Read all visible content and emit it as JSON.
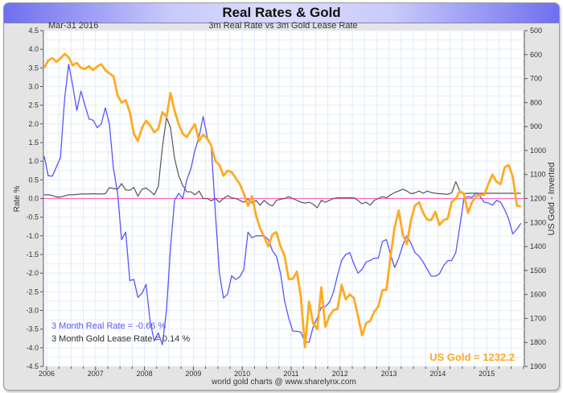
{
  "title": "Real Rates & Gold",
  "date_label": "Mar-31  2016",
  "subtitle": "3m Real Rate vs 3m Gold Lease Rate",
  "footer": "world gold charts @ www.sharelynx.com",
  "chart_data": {
    "type": "line",
    "title": "Real Rates & Gold",
    "subtitle": "3m Real Rate vs 3m Gold Lease Rate",
    "xlabel": "",
    "ylabel": "Rate %",
    "y2label": "US Gold - Inverted",
    "xlim": [
      2005.9,
      2015.75
    ],
    "ylim": [
      -4.5,
      4.5
    ],
    "y2lim": [
      500,
      1900
    ],
    "y2_inverted": true,
    "x_ticks": [
      "2006",
      "2007",
      "2008",
      "2009",
      "2010",
      "2011",
      "2012",
      "2013",
      "2014",
      "2015"
    ],
    "y_ticks": [
      "4.5",
      "4.0",
      "3.5",
      "3.0",
      "2.5",
      "2.0",
      "1.5",
      "1.0",
      "0.5",
      "0.0",
      "-0.5",
      "-1.0",
      "-1.5",
      "-2.0",
      "-2.5",
      "-3.0",
      "-3.5",
      "-4.0",
      "-4.5"
    ],
    "y2_ticks": [
      "500",
      "600",
      "700",
      "800",
      "900",
      "1000",
      "1100",
      "1200",
      "1300",
      "1400",
      "1500",
      "1600",
      "1700",
      "1800",
      "1900"
    ],
    "x_start": 2005.95,
    "x_step_years": 0.08333,
    "grid": true,
    "zero_line_color": "#ff66cc",
    "series": [
      {
        "name": "3 Month Real Rate",
        "axis": "left",
        "color": "#5555ff",
        "label": "3 Month Real Rate = -0.66 %",
        "values": [
          1.13,
          0.61,
          0.6,
          0.85,
          1.1,
          2.66,
          3.6,
          3.03,
          2.36,
          2.88,
          2.5,
          2.13,
          2.1,
          1.9,
          2.0,
          2.43,
          2.0,
          0.8,
          0.14,
          -1.1,
          -0.9,
          -2.2,
          -2.17,
          -2.65,
          -2.54,
          -2.3,
          -3.3,
          -3.82,
          -3.6,
          -3.92,
          -3.0,
          -1.31,
          -0.04,
          0.14,
          0.0,
          0.5,
          0.8,
          1.3,
          1.65,
          2.2,
          1.65,
          1.4,
          -0.4,
          -2.0,
          -2.67,
          -2.56,
          -2.07,
          -2.17,
          -2.1,
          -1.9,
          -0.9,
          -1.05,
          -1.0,
          -1.0,
          -1.0,
          -1.1,
          -1.4,
          -1.55,
          -2.0,
          -2.75,
          -3.2,
          -3.55,
          -3.56,
          -3.58,
          -3.85,
          -3.85,
          -3.45,
          -3.2,
          -2.92,
          -2.9,
          -2.78,
          -2.5,
          -2.05,
          -1.66,
          -1.5,
          -1.45,
          -1.75,
          -2.0,
          -1.9,
          -1.7,
          -1.66,
          -1.6,
          -1.6,
          -1.15,
          -1.1,
          -1.5,
          -1.85,
          -1.6,
          -1.25,
          -1.0,
          -1.2,
          -1.45,
          -1.55,
          -1.7,
          -1.9,
          -2.08,
          -2.08,
          -2.02,
          -1.8,
          -1.67,
          -1.66,
          -1.45,
          -0.75,
          0.0,
          0.05,
          0.03,
          0.15,
          0.05,
          -0.1,
          -0.12,
          -0.18,
          -0.05,
          -0.1,
          -0.3,
          -0.55,
          -0.95,
          -0.82,
          -0.66
        ]
      },
      {
        "name": "3 Month Gold Lease Rate",
        "axis": "left",
        "color": "#555555",
        "label": "3 Month Gold Lease Rate = 0.14 %",
        "values": [
          0.1,
          0.1,
          0.08,
          0.04,
          0.04,
          0.07,
          0.1,
          0.1,
          0.11,
          0.12,
          0.12,
          0.12,
          0.13,
          0.12,
          0.12,
          0.13,
          0.29,
          0.27,
          0.25,
          0.4,
          0.23,
          0.22,
          0.3,
          0.06,
          0.25,
          0.28,
          0.2,
          0.1,
          0.32,
          1.37,
          2.17,
          1.9,
          1.07,
          0.61,
          0.35,
          0.18,
          0.18,
          0.1,
          0.2,
          0.0,
          0.0,
          -0.06,
          0.0,
          -0.1,
          0.0,
          0.08,
          0.02,
          0.0,
          -0.05,
          -0.1,
          -0.02,
          -0.12,
          -0.05,
          -0.18,
          -0.05,
          -0.15,
          -0.2,
          -0.05,
          -0.02,
          0.0,
          0.05,
          0.0,
          -0.05,
          -0.1,
          -0.12,
          -0.1,
          -0.15,
          -0.25,
          -0.05,
          -0.1,
          -0.05,
          0.0,
          0.02,
          0.02,
          0.02,
          0.02,
          0.02,
          -0.05,
          -0.14,
          -0.1,
          -0.18,
          -0.05,
          0.0,
          0.05,
          0.02,
          0.1,
          0.16,
          0.2,
          0.25,
          0.2,
          0.13,
          0.15,
          0.2,
          0.14,
          0.2,
          0.16,
          0.14,
          0.13,
          0.12,
          0.11,
          0.15,
          0.45,
          0.2,
          0.13,
          0.14,
          0.14,
          0.14,
          0.14,
          0.14,
          0.14,
          0.14,
          0.14,
          0.14,
          0.14,
          0.14,
          0.14,
          0.14,
          0.14
        ]
      },
      {
        "name": "US Gold",
        "axis": "right",
        "color": "#ffaa22",
        "label": "US Gold = 1232.2",
        "values": [
          655,
          625,
          614,
          630,
          615,
          597,
          611,
          645,
          634,
          655,
          660,
          648,
          665,
          650,
          640,
          665,
          678,
          690,
          770,
          800,
          790,
          840,
          930,
          960,
          905,
          876,
          895,
          924,
          910,
          840,
          860,
          760,
          835,
          890,
          930,
          944,
          915,
          890,
          960,
          934,
          950,
          980,
          1044,
          1060,
          1105,
          1084,
          1090,
          1115,
          1140,
          1180,
          1230,
          1190,
          1270,
          1325,
          1360,
          1400,
          1350,
          1340,
          1400,
          1440,
          1535,
          1535,
          1505,
          1610,
          1820,
          1630,
          1720,
          1745,
          1570,
          1735,
          1690,
          1665,
          1660,
          1560,
          1620,
          1600,
          1615,
          1690,
          1770,
          1720,
          1710,
          1672,
          1650,
          1582,
          1580,
          1440,
          1320,
          1250,
          1350,
          1390,
          1290,
          1230,
          1215,
          1260,
          1288,
          1290,
          1255,
          1310,
          1290,
          1285,
          1215,
          1200,
          1170,
          1180,
          1260,
          1215,
          1190,
          1185,
          1185,
          1140,
          1100,
          1130,
          1140,
          1070,
          1060,
          1110,
          1230,
          1232
        ]
      }
    ]
  }
}
